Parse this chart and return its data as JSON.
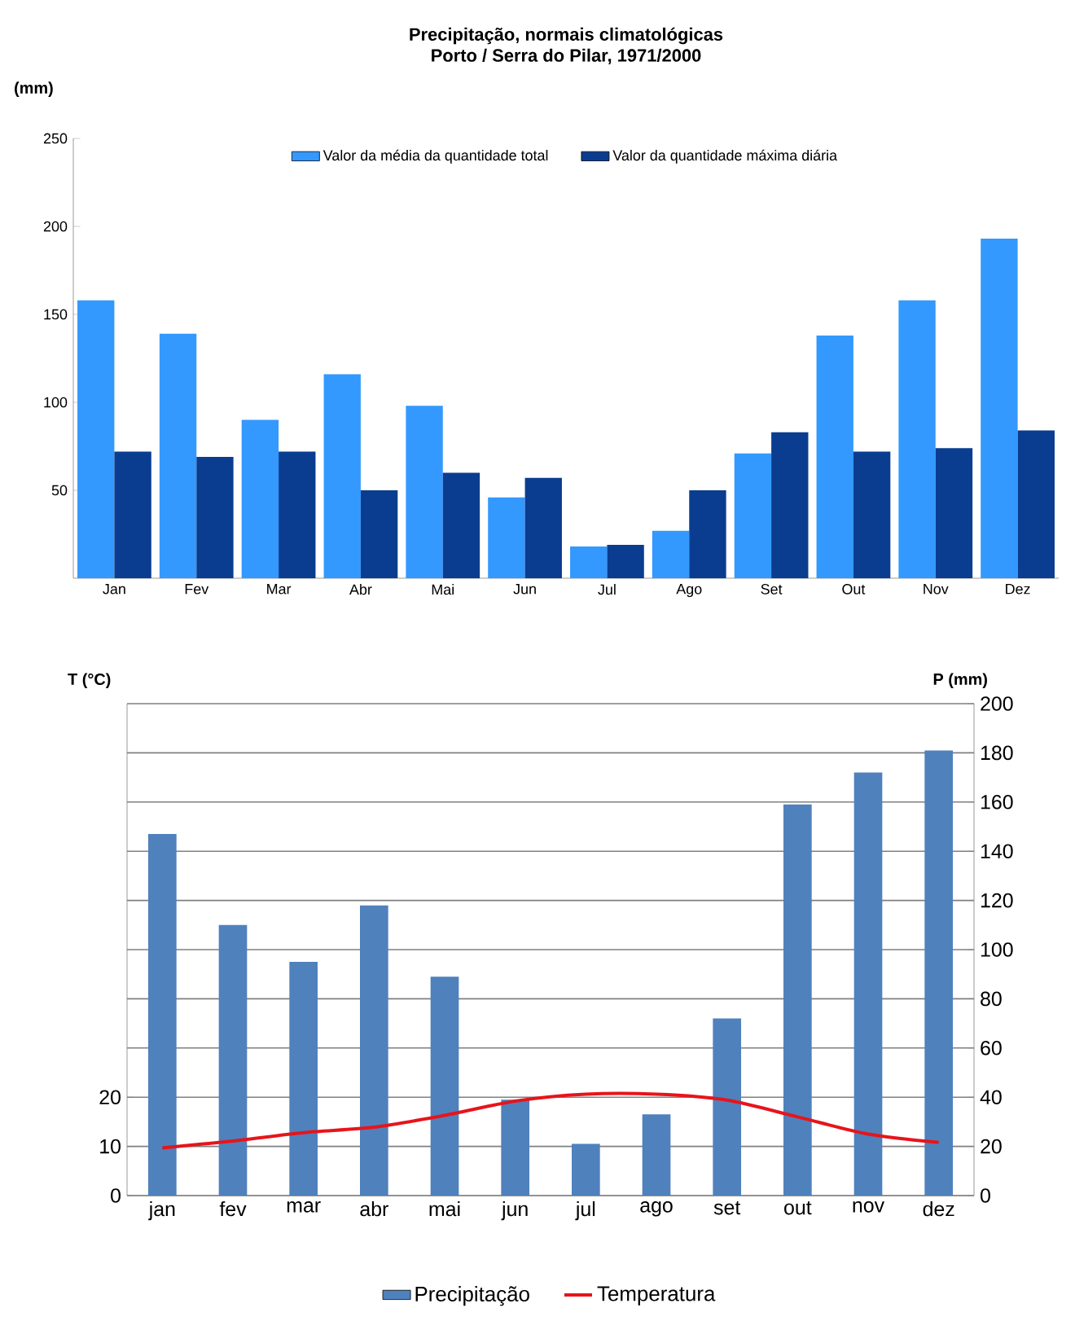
{
  "chart_data": [
    {
      "type": "bar",
      "title": "Precipitação, normais climatológicas",
      "subtitle": "Porto / Serra do Pilar, 1971/2000",
      "ylabel": "(mm)",
      "categories": [
        "Jan",
        "Fev",
        "Mar",
        "Abr",
        "Mai",
        "Jun",
        "Jul",
        "Ago",
        "Set",
        "Out",
        "Nov",
        "Dez"
      ],
      "series": [
        {
          "name": "Valor da média da quantidade total",
          "color": "#3399ff",
          "values": [
            158,
            139,
            90,
            116,
            98,
            46,
            18,
            27,
            71,
            138,
            158,
            193
          ]
        },
        {
          "name": "Valor da quantidade máxima diária",
          "color": "#0a3d8f",
          "values": [
            72,
            69,
            72,
            50,
            60,
            57,
            19,
            50,
            83,
            72,
            74,
            84
          ]
        }
      ],
      "ylim": [
        0,
        250
      ],
      "yticks": [
        50,
        100,
        150,
        200,
        250
      ],
      "legend": "top"
    },
    {
      "type": "bar",
      "ylabel": "T (°C)",
      "y2label": "P (mm)",
      "categories": [
        "jan",
        "fev",
        "mar",
        "abr",
        "mai",
        "jun",
        "jul",
        "ago",
        "set",
        "out",
        "nov",
        "dez"
      ],
      "series": [
        {
          "name": "Precipitação",
          "color": "#4f81bd",
          "axis": "y2",
          "values": [
            147,
            110,
            95,
            118,
            89,
            39,
            21,
            33,
            72,
            159,
            172,
            181
          ]
        },
        {
          "name": "Temperatura",
          "type": "line",
          "color": "#e8141c",
          "axis": "y",
          "values": [
            9.7,
            11.1,
            12.8,
            13.9,
            16.3,
            19.2,
            20.6,
            20.6,
            19.4,
            16.0,
            12.5,
            10.8
          ]
        }
      ],
      "ylim": [
        0,
        100
      ],
      "yticks": [
        0,
        10,
        20
      ],
      "y2lim": [
        0,
        200
      ],
      "y2ticks": [
        0,
        20,
        40,
        60,
        80,
        100,
        120,
        140,
        160,
        180,
        200
      ],
      "grid": "y",
      "legend": "bottom"
    }
  ]
}
